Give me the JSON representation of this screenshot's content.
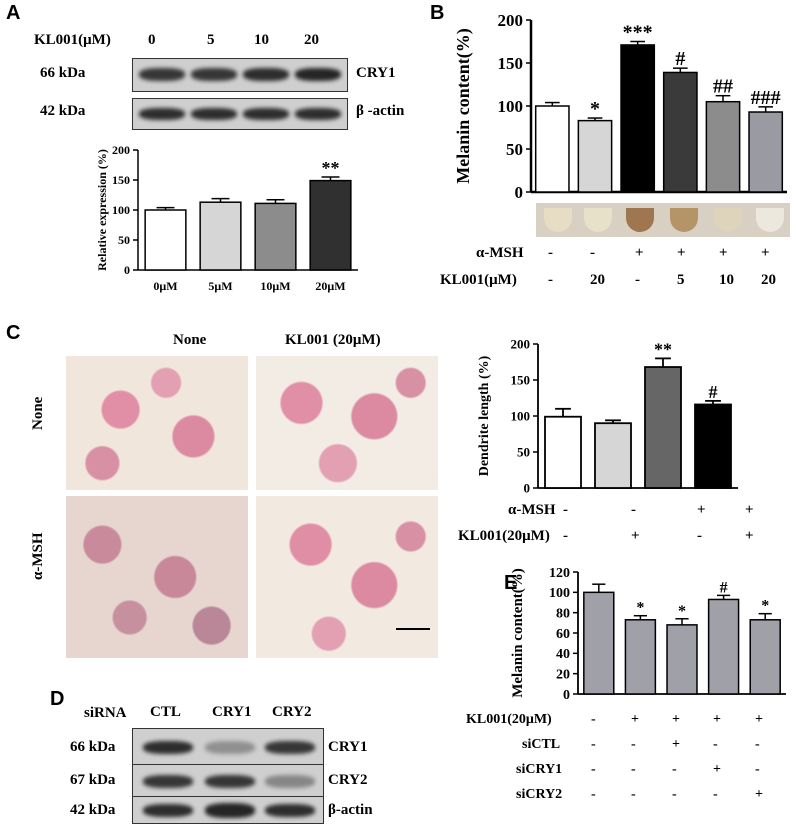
{
  "panels": {
    "A": "A",
    "B": "B",
    "C": "C",
    "D": "D",
    "E": "E"
  },
  "panelA": {
    "treatment_label": "KL001(μM)",
    "doses": [
      "0",
      "5",
      "10",
      "20"
    ],
    "blots": [
      {
        "size": "66 kDa",
        "protein": "CRY1",
        "intensity": [
          0.85,
          0.85,
          0.9,
          0.95
        ]
      },
      {
        "size": "42 kDa",
        "protein": "β -actin",
        "intensity": [
          0.9,
          0.9,
          0.9,
          0.9
        ]
      }
    ]
  },
  "panelB": {
    "row1_label": "α-MSH",
    "row2_label": "KL001(μM)",
    "row1": [
      "-",
      "-",
      "+",
      "+",
      "+",
      "+"
    ],
    "row2": [
      "-",
      "20",
      "-",
      "5",
      "10",
      "20"
    ]
  },
  "panelC": {
    "col_headers": [
      "None",
      "KL001 (20μM)"
    ],
    "row_headers": [
      "None",
      "α-MSH"
    ],
    "row1_label": "α-MSH",
    "row2_label": "KL001(20μM)",
    "row1": [
      "-",
      "-",
      "+",
      "+"
    ],
    "row2": [
      "-",
      "+",
      "-",
      "+"
    ]
  },
  "panelD": {
    "header_label": "siRNA",
    "lanes": [
      "CTL",
      "CRY1",
      "CRY2"
    ],
    "blots": [
      {
        "size": "66 kDa",
        "protein": "CRY1",
        "intensity": [
          0.9,
          0.35,
          0.85
        ]
      },
      {
        "size": "67 kDa",
        "protein": "CRY2",
        "intensity": [
          0.85,
          0.85,
          0.4
        ]
      },
      {
        "size": "42 kDa",
        "protein": "β-actin",
        "intensity": [
          0.9,
          0.95,
          0.9
        ]
      }
    ]
  },
  "panelE": {
    "row_labels": [
      "KL001(20μM)",
      "siCTL",
      "siCRY1",
      "siCRY2"
    ],
    "rows": [
      [
        "-",
        "+",
        "+",
        "+",
        "+"
      ],
      [
        "-",
        "-",
        "+",
        "-",
        "-"
      ],
      [
        "-",
        "-",
        "-",
        "+",
        "-"
      ],
      [
        "-",
        "-",
        "-",
        "-",
        "+"
      ]
    ]
  },
  "chart_data": [
    {
      "id": "A",
      "type": "bar",
      "categories": [
        "0μM",
        "5μM",
        "10μM",
        "20μM"
      ],
      "values": [
        100,
        113,
        111,
        149
      ],
      "errors": [
        4,
        6,
        6,
        6
      ],
      "colors": [
        "#ffffff",
        "#d6d6d6",
        "#8c8c8c",
        "#303030"
      ],
      "annotations": [
        "",
        "",
        "",
        "**"
      ],
      "ylabel": "Relative expression (%)",
      "ylim": [
        0,
        200
      ],
      "yticks": [
        0,
        50,
        100,
        150,
        200
      ]
    },
    {
      "id": "B",
      "type": "bar",
      "categories": [
        "1",
        "2",
        "3",
        "4",
        "5",
        "6"
      ],
      "values": [
        100,
        83,
        171,
        139,
        105,
        93
      ],
      "errors": [
        4,
        3,
        4,
        5,
        7,
        6
      ],
      "colors": [
        "#ffffff",
        "#d6d6d6",
        "#000000",
        "#3a3a3a",
        "#8c8c8c",
        "#9a9aa2"
      ],
      "annotations": [
        "",
        "*",
        "***",
        "#",
        "##",
        "###"
      ],
      "ylabel": "Melanin content(%)",
      "ylim": [
        0,
        200
      ],
      "yticks": [
        0,
        50,
        100,
        150,
        200
      ]
    },
    {
      "id": "C",
      "type": "bar",
      "categories": [
        "1",
        "2",
        "3",
        "4"
      ],
      "values": [
        99,
        90,
        168,
        116
      ],
      "errors": [
        11,
        4,
        12,
        5
      ],
      "colors": [
        "#ffffff",
        "#d6d6d6",
        "#666666",
        "#000000"
      ],
      "annotations": [
        "",
        "",
        "**",
        "#"
      ],
      "ylabel": "Dendrite length (%)",
      "ylim": [
        0,
        200
      ],
      "yticks": [
        0,
        50,
        100,
        150,
        200
      ]
    },
    {
      "id": "E",
      "type": "bar",
      "categories": [
        "1",
        "2",
        "3",
        "4",
        "5"
      ],
      "values": [
        100,
        73,
        68,
        93,
        73
      ],
      "errors": [
        8,
        4,
        6,
        4,
        6
      ],
      "colors": [
        "#a0a0a8",
        "#a0a0a8",
        "#a0a0a8",
        "#a0a0a8",
        "#a0a0a8"
      ],
      "annotations": [
        "",
        "*",
        "*",
        "#",
        "*"
      ],
      "ylabel": "Melanin content(%)",
      "ylim": [
        0,
        120
      ],
      "yticks": [
        0,
        20,
        40,
        60,
        80,
        100,
        120
      ]
    }
  ]
}
